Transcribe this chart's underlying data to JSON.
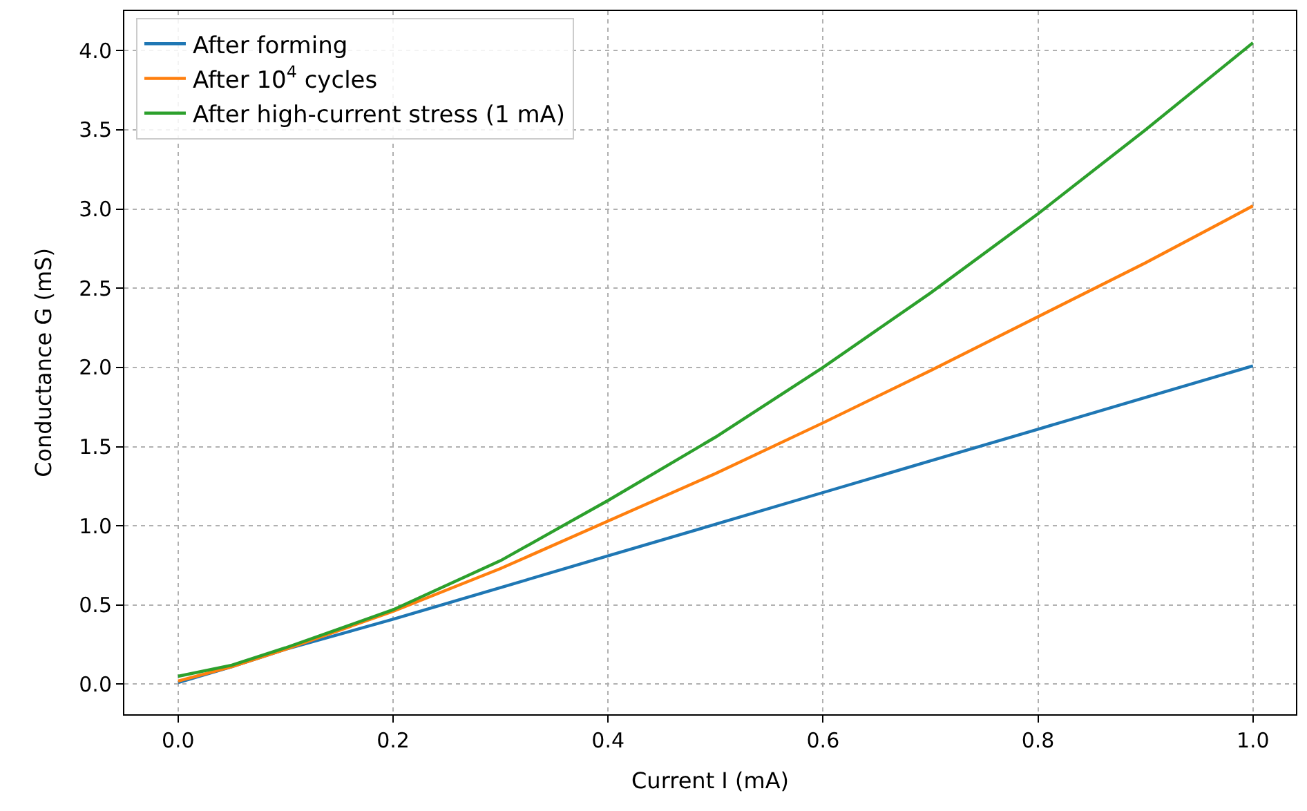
{
  "chart_data": {
    "type": "line",
    "xlabel": "Current I (mA)",
    "ylabel": "Conductance G (mS)",
    "xlim": [
      -0.05,
      1.04
    ],
    "ylim": [
      -0.19,
      4.25
    ],
    "xticks": [
      {
        "value": 0,
        "label": "0.0"
      },
      0.2,
      0.4,
      0.6,
      0.8,
      {
        "value": 1,
        "label": "1.0"
      }
    ],
    "yticks": [
      {
        "value": 0,
        "label": "0.0"
      },
      0.5,
      {
        "value": 1,
        "label": "1.0"
      },
      1.5,
      {
        "value": 2,
        "label": "2.0"
      },
      2.5,
      {
        "value": 3,
        "label": "3.0"
      },
      3.5,
      {
        "value": 4,
        "label": "4.0"
      }
    ],
    "x": [
      0,
      0.05,
      0.1,
      0.2,
      0.3,
      0.4,
      0.5,
      0.6,
      0.7,
      0.8,
      0.9,
      1.0
    ],
    "series": [
      {
        "name": "After forming",
        "color": "#1f77b4",
        "values": [
          0.01,
          0.11,
          0.22,
          0.41,
          0.61,
          0.81,
          1.01,
          1.21,
          1.41,
          1.61,
          1.81,
          2.01
        ]
      },
      {
        "name": "After 10$^{4}$ cycles",
        "color": "#ff7f0e",
        "values": [
          0.02,
          0.11,
          0.22,
          0.46,
          0.73,
          1.03,
          1.33,
          1.65,
          1.98,
          2.32,
          2.66,
          3.02
        ]
      },
      {
        "name": "After high-current stress (1 mA)",
        "color": "#2ca02c",
        "values": [
          0.05,
          0.12,
          0.23,
          0.47,
          0.78,
          1.16,
          1.56,
          2.0,
          2.47,
          2.97,
          3.5,
          4.05
        ]
      }
    ],
    "grid": true,
    "legend": "top left",
    "line_style": "solid",
    "marker": "none"
  }
}
